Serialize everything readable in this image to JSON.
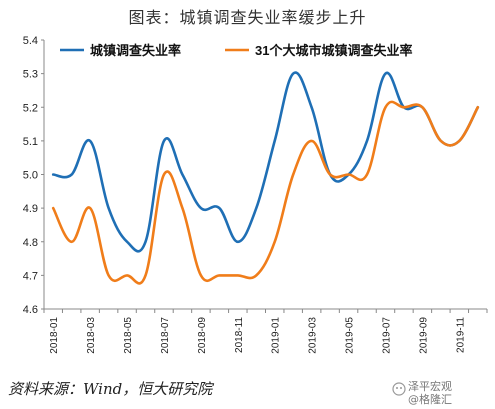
{
  "header": {
    "title": "图表：城镇调查失业率缓步上升"
  },
  "footer": {
    "source": "资料来源：Wind，恒大研究院",
    "watermark_line1": "泽平宏观",
    "watermark_line2": "@格隆汇"
  },
  "chart_data": {
    "type": "line",
    "title": "图表：城镇调查失业率缓步上升",
    "xlabel": "",
    "ylabel": "",
    "ylim": [
      4.6,
      5.4
    ],
    "yticks": [
      "5.4",
      "5.3",
      "5.2",
      "5.1",
      "5.0",
      "4.9",
      "4.8",
      "4.7",
      "4.6"
    ],
    "x": [
      "2018-01",
      "2018-02",
      "2018-03",
      "2018-04",
      "2018-05",
      "2018-06",
      "2018-07",
      "2018-08",
      "2018-09",
      "2018-10",
      "2018-11",
      "2018-12",
      "2019-01",
      "2019-02",
      "2019-03",
      "2019-04",
      "2019-05",
      "2019-06",
      "2019-07",
      "2019-08",
      "2019-09",
      "2019-10",
      "2019-11",
      "2019-12"
    ],
    "xtick_labels": [
      "2018-01",
      "2018-03",
      "2018-05",
      "2018-07",
      "2018-09",
      "2018-11",
      "2019-01",
      "2019-03",
      "2019-05",
      "2019-07",
      "2019-09",
      "2019-11"
    ],
    "legend_position": "top-left",
    "grid": false,
    "series": [
      {
        "name": "城镇调查失业率",
        "color": "#1f6fb5",
        "values": [
          5.0,
          5.0,
          5.1,
          4.9,
          4.8,
          4.8,
          5.1,
          5.0,
          4.9,
          4.9,
          4.8,
          4.9,
          5.1,
          5.3,
          5.2,
          5.0,
          5.0,
          5.1,
          5.3,
          5.2,
          5.2,
          5.1,
          5.1,
          5.2
        ]
      },
      {
        "name": "31个大城市城镇调查失业率",
        "color": "#f07d1a",
        "values": [
          4.9,
          4.8,
          4.9,
          4.7,
          4.7,
          4.7,
          5.0,
          4.9,
          4.7,
          4.7,
          4.7,
          4.7,
          4.8,
          5.0,
          5.1,
          5.0,
          5.0,
          5.0,
          5.2,
          5.2,
          5.2,
          5.1,
          5.1,
          5.2
        ]
      }
    ]
  }
}
